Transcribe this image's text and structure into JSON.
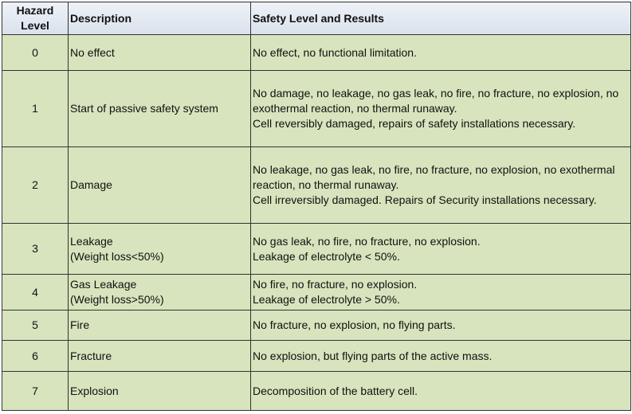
{
  "table": {
    "header": [
      "Hazard Level",
      "Description",
      "Safety Level and Results"
    ],
    "rows": [
      {
        "level": 0,
        "description": [
          "No effect"
        ],
        "results": [
          "No effect, no functional limitation."
        ]
      },
      {
        "level": 1,
        "description": [
          "Start of passive safety system"
        ],
        "results": [
          "No damage, no leakage, no gas leak, no fire, no fracture, no explosion, no exothermal reaction, no thermal runaway.",
          "Cell reversibly damaged, repairs of safety installations necessary."
        ]
      },
      {
        "level": 2,
        "description": [
          "Damage"
        ],
        "results": [
          "No leakage, no gas leak, no fire, no fracture, no explosion, no exothermal reaction, no thermal runaway.",
          "Cell irreversibly damaged. Repairs of Security installations necessary."
        ]
      },
      {
        "level": 3,
        "description": [
          "Leakage",
          "(Weight loss<50%)"
        ],
        "results": [
          "No gas leak, no fire, no fracture, no explosion.",
          "Leakage of electrolyte < 50%."
        ]
      },
      {
        "level": 4,
        "description": [
          "Gas Leakage",
          "(Weight loss>50%)"
        ],
        "results": [
          "No fire, no fracture, no explosion.",
          "Leakage of electrolyte > 50%."
        ]
      },
      {
        "level": 5,
        "description": [
          "Fire"
        ],
        "results": [
          "No fracture, no explosion, no flying parts."
        ]
      },
      {
        "level": 6,
        "description": [
          "Fracture"
        ],
        "results": [
          "No explosion, but flying parts of the active mass."
        ]
      },
      {
        "level": 7,
        "description": [
          "Explosion"
        ],
        "results": [
          "Decomposition of the battery cell."
        ]
      }
    ]
  }
}
